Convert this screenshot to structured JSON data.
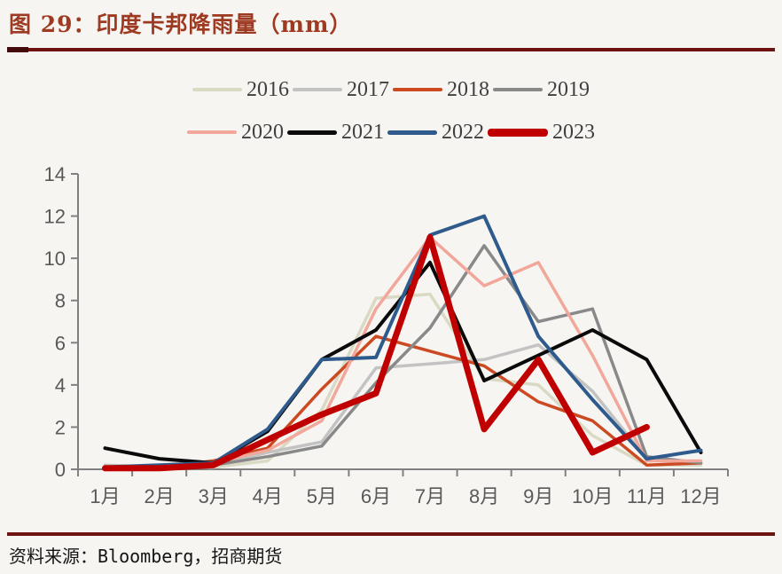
{
  "page": {
    "title": "图 29：印度卡邦降雨量（mm）",
    "source": "资料来源：Bloomberg，招商期货"
  },
  "chart_data": {
    "type": "line",
    "title": "印度卡邦降雨量（mm）",
    "xlabel": "",
    "ylabel": "",
    "categories": [
      "1月",
      "2月",
      "3月",
      "4月",
      "5月",
      "6月",
      "7月",
      "8月",
      "9月",
      "10月",
      "11月",
      "12月"
    ],
    "y_ticks": [
      0,
      2,
      4,
      6,
      8,
      10,
      12,
      14
    ],
    "ylim": [
      0,
      14
    ],
    "grid": false,
    "legend_position": "top",
    "series": [
      {
        "name": "2016",
        "color": "#d9d9c4",
        "width": 3.5,
        "values": [
          0.1,
          0.1,
          0.1,
          0.4,
          2.8,
          8.1,
          8.3,
          4.3,
          4.0,
          1.6,
          0.2,
          0.2
        ]
      },
      {
        "name": "2017",
        "color": "#c3c3c3",
        "width": 3.5,
        "values": [
          0.2,
          0.1,
          0.2,
          0.8,
          1.3,
          4.8,
          5.0,
          5.2,
          5.9,
          3.7,
          0.5,
          0.3
        ]
      },
      {
        "name": "2018",
        "color": "#cc4a21",
        "width": 3.5,
        "values": [
          0.1,
          0.1,
          0.4,
          1.0,
          3.8,
          6.3,
          5.6,
          4.9,
          3.2,
          2.3,
          0.2,
          0.3
        ]
      },
      {
        "name": "2019",
        "color": "#898989",
        "width": 3.5,
        "values": [
          0.1,
          0.1,
          0.2,
          0.6,
          1.1,
          4.1,
          6.7,
          10.6,
          7.0,
          7.6,
          0.6,
          0.3
        ]
      },
      {
        "name": "2020",
        "color": "#f2a79b",
        "width": 3.5,
        "values": [
          0.1,
          0.1,
          0.3,
          0.9,
          2.3,
          7.6,
          11.0,
          8.7,
          9.8,
          5.4,
          0.4,
          0.4
        ]
      },
      {
        "name": "2021",
        "color": "#0a0a0a",
        "width": 4,
        "values": [
          1.0,
          0.5,
          0.3,
          1.8,
          5.2,
          6.6,
          9.8,
          4.2,
          5.4,
          6.6,
          5.2,
          0.8
        ]
      },
      {
        "name": "2022",
        "color": "#2e5b8c",
        "width": 4,
        "values": [
          0.1,
          0.2,
          0.3,
          1.9,
          5.2,
          5.3,
          11.1,
          12.0,
          6.3,
          3.3,
          0.5,
          0.9
        ]
      },
      {
        "name": "2023",
        "color": "#c00000",
        "width": 7,
        "values": [
          0.05,
          0.05,
          0.2,
          1.4,
          2.6,
          3.6,
          11.0,
          1.9,
          5.2,
          0.8,
          2.0,
          null
        ]
      }
    ]
  },
  "colors": {
    "background": "#f7f5f2",
    "title": "#9e3a21",
    "rule": "#6d1411",
    "axis": "#808080",
    "tick_label": "#595959",
    "legend_label": "#3f3f3f"
  }
}
